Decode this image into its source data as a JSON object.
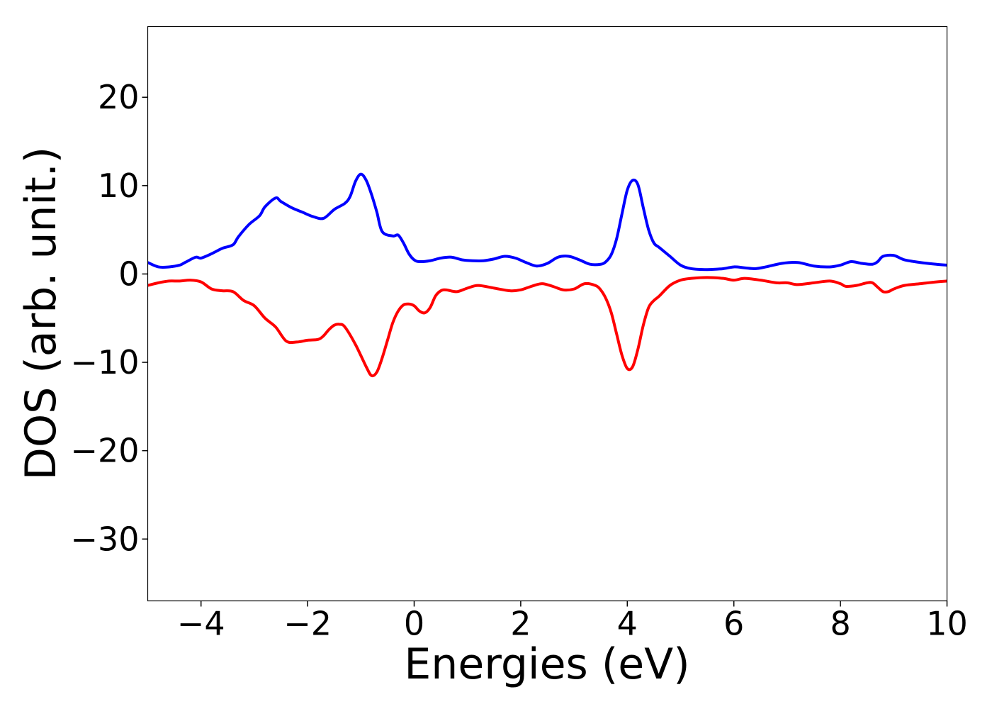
{
  "chart_data": {
    "type": "line",
    "title": "",
    "xlabel": "Energies (eV)",
    "ylabel": "DOS (arb. unit.)",
    "xlim": [
      -5,
      10
    ],
    "ylim": [
      -37,
      28
    ],
    "xticks": [
      -4,
      -2,
      0,
      2,
      4,
      6,
      8,
      10
    ],
    "xtick_labels": [
      "−4",
      "−2",
      "0",
      "2",
      "4",
      "6",
      "8",
      "10"
    ],
    "yticks": [
      -30,
      -20,
      -10,
      0,
      10,
      20
    ],
    "ytick_labels": [
      "−30",
      "−20",
      "−10",
      "0",
      "10",
      "20"
    ],
    "grid": false,
    "legend": "none",
    "series": [
      {
        "color": "#0000ff",
        "x": [
          -5.0,
          -4.8,
          -4.6,
          -4.4,
          -4.3,
          -4.1,
          -4.0,
          -3.8,
          -3.6,
          -3.4,
          -3.3,
          -3.1,
          -2.9,
          -2.8,
          -2.6,
          -2.5,
          -2.3,
          -2.1,
          -1.9,
          -1.7,
          -1.5,
          -1.3,
          -1.2,
          -1.1,
          -1.0,
          -0.9,
          -0.8,
          -0.7,
          -0.6,
          -0.4,
          -0.3,
          -0.2,
          -0.1,
          0.0,
          0.1,
          0.3,
          0.5,
          0.7,
          0.9,
          1.1,
          1.3,
          1.5,
          1.7,
          1.9,
          2.1,
          2.3,
          2.5,
          2.7,
          2.9,
          3.1,
          3.3,
          3.5,
          3.6,
          3.7,
          3.8,
          3.9,
          4.0,
          4.1,
          4.2,
          4.3,
          4.4,
          4.5,
          4.6,
          4.8,
          5.0,
          5.2,
          5.5,
          5.8,
          6.0,
          6.2,
          6.4,
          6.6,
          6.9,
          7.2,
          7.5,
          7.8,
          8.0,
          8.2,
          8.4,
          8.6,
          8.7,
          8.8,
          9.0,
          9.2,
          9.5,
          9.8,
          10.0
        ],
        "y": [
          1.3,
          0.8,
          0.8,
          1.0,
          1.3,
          1.9,
          1.8,
          2.3,
          2.9,
          3.3,
          4.2,
          5.6,
          6.6,
          7.6,
          8.6,
          8.2,
          7.5,
          7.0,
          6.5,
          6.3,
          7.3,
          8.0,
          8.8,
          10.5,
          11.3,
          10.6,
          9.0,
          7.0,
          4.8,
          4.3,
          4.4,
          3.5,
          2.3,
          1.6,
          1.4,
          1.5,
          1.8,
          1.9,
          1.6,
          1.5,
          1.5,
          1.7,
          2.0,
          1.8,
          1.3,
          0.9,
          1.2,
          1.9,
          2.0,
          1.6,
          1.1,
          1.1,
          1.4,
          2.2,
          4.0,
          6.8,
          9.5,
          10.6,
          10.1,
          7.5,
          5.0,
          3.5,
          3.0,
          2.0,
          1.0,
          0.6,
          0.5,
          0.6,
          0.8,
          0.7,
          0.6,
          0.8,
          1.2,
          1.3,
          0.9,
          0.8,
          1.0,
          1.4,
          1.2,
          1.1,
          1.4,
          2.0,
          2.1,
          1.6,
          1.3,
          1.1,
          1.0
        ]
      },
      {
        "color": "#ff0000",
        "x": [
          -5.0,
          -4.8,
          -4.6,
          -4.4,
          -4.2,
          -4.0,
          -3.8,
          -3.6,
          -3.4,
          -3.2,
          -3.0,
          -2.8,
          -2.6,
          -2.4,
          -2.2,
          -2.0,
          -1.8,
          -1.7,
          -1.6,
          -1.5,
          -1.4,
          -1.3,
          -1.1,
          -0.9,
          -0.8,
          -0.7,
          -0.6,
          -0.5,
          -0.4,
          -0.3,
          -0.2,
          -0.1,
          0.0,
          0.1,
          0.2,
          0.3,
          0.4,
          0.5,
          0.6,
          0.8,
          1.0,
          1.2,
          1.5,
          1.8,
          2.0,
          2.2,
          2.4,
          2.6,
          2.8,
          3.0,
          3.2,
          3.4,
          3.5,
          3.6,
          3.7,
          3.8,
          3.9,
          4.0,
          4.1,
          4.2,
          4.3,
          4.4,
          4.5,
          4.6,
          4.8,
          5.0,
          5.2,
          5.5,
          5.8,
          6.0,
          6.2,
          6.5,
          6.8,
          7.0,
          7.2,
          7.5,
          7.8,
          8.0,
          8.1,
          8.3,
          8.5,
          8.6,
          8.7,
          8.8,
          8.9,
          9.0,
          9.2,
          9.5,
          9.8,
          10.0
        ],
        "y": [
          -1.3,
          -1.0,
          -0.8,
          -0.8,
          -0.7,
          -0.9,
          -1.7,
          -1.9,
          -2.0,
          -3.0,
          -3.6,
          -5.0,
          -6.0,
          -7.6,
          -7.7,
          -7.5,
          -7.4,
          -7.0,
          -6.3,
          -5.8,
          -5.7,
          -6.0,
          -8.0,
          -10.5,
          -11.5,
          -11.1,
          -9.5,
          -7.5,
          -5.5,
          -4.2,
          -3.5,
          -3.4,
          -3.6,
          -4.2,
          -4.4,
          -3.8,
          -2.5,
          -1.9,
          -1.8,
          -2.0,
          -1.6,
          -1.3,
          -1.6,
          -1.9,
          -1.8,
          -1.4,
          -1.1,
          -1.4,
          -1.8,
          -1.7,
          -1.1,
          -1.3,
          -1.8,
          -2.8,
          -4.4,
          -6.8,
          -9.2,
          -10.7,
          -10.5,
          -8.5,
          -5.8,
          -3.8,
          -3.0,
          -2.5,
          -1.3,
          -0.7,
          -0.5,
          -0.4,
          -0.5,
          -0.7,
          -0.5,
          -0.7,
          -1.0,
          -1.0,
          -1.2,
          -1.0,
          -0.8,
          -1.1,
          -1.4,
          -1.3,
          -1.0,
          -1.0,
          -1.5,
          -2.0,
          -2.0,
          -1.7,
          -1.3,
          -1.1,
          -0.9,
          -0.8
        ]
      }
    ]
  }
}
